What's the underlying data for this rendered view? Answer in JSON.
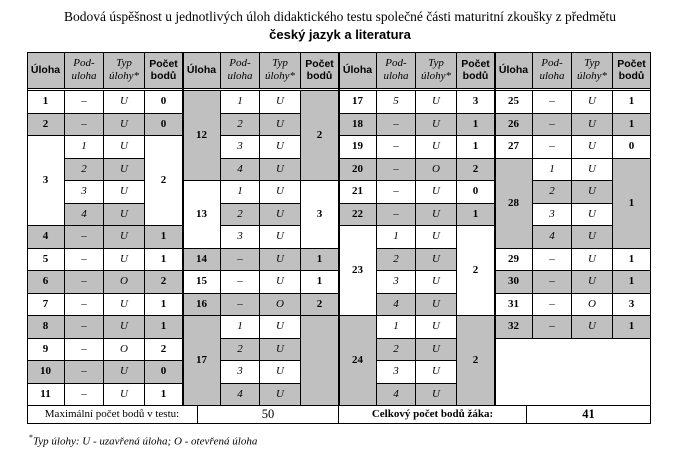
{
  "title_line1": "Bodová úspěšnost u jednotlivých úloh didaktického testu společné části maturitní zkoušky z předmětu",
  "title_line2": "český jazyk a literatura",
  "headers": {
    "task": "Úloha",
    "subtask": "Pod-\nuloha",
    "type": "Typ\núlohy*",
    "points": "Počet\nbodů"
  },
  "blocks": [
    [
      {
        "task": "1",
        "rows": [
          {
            "sub": "–",
            "type": "U"
          }
        ],
        "points": "0"
      },
      {
        "task": "2",
        "rows": [
          {
            "sub": "–",
            "type": "U"
          }
        ],
        "points": "0"
      },
      {
        "task": "3",
        "rows": [
          {
            "sub": "1",
            "type": "U"
          },
          {
            "sub": "2",
            "type": "U"
          },
          {
            "sub": "3",
            "type": "U"
          },
          {
            "sub": "4",
            "type": "U"
          }
        ],
        "points": "2"
      },
      {
        "task": "4",
        "rows": [
          {
            "sub": "–",
            "type": "U"
          }
        ],
        "points": "1"
      },
      {
        "task": "5",
        "rows": [
          {
            "sub": "–",
            "type": "U"
          }
        ],
        "points": "1"
      },
      {
        "task": "6",
        "rows": [
          {
            "sub": "–",
            "type": "O"
          }
        ],
        "points": "2"
      },
      {
        "task": "7",
        "rows": [
          {
            "sub": "–",
            "type": "U"
          }
        ],
        "points": "1"
      },
      {
        "task": "8",
        "rows": [
          {
            "sub": "–",
            "type": "U"
          }
        ],
        "points": "1"
      },
      {
        "task": "9",
        "rows": [
          {
            "sub": "–",
            "type": "O"
          }
        ],
        "points": "2"
      },
      {
        "task": "10",
        "rows": [
          {
            "sub": "–",
            "type": "U"
          }
        ],
        "points": "0"
      },
      {
        "task": "11",
        "rows": [
          {
            "sub": "–",
            "type": "U"
          }
        ],
        "points": "1"
      }
    ],
    [
      {
        "task": "12",
        "rows": [
          {
            "sub": "1",
            "type": "U"
          },
          {
            "sub": "2",
            "type": "U"
          },
          {
            "sub": "3",
            "type": "U"
          },
          {
            "sub": "4",
            "type": "U"
          }
        ],
        "points": "2"
      },
      {
        "task": "13",
        "rows": [
          {
            "sub": "1",
            "type": "U"
          },
          {
            "sub": "2",
            "type": "U"
          },
          {
            "sub": "3",
            "type": "U"
          }
        ],
        "points": "3"
      },
      {
        "task": "14",
        "rows": [
          {
            "sub": "–",
            "type": "U"
          }
        ],
        "points": "1"
      },
      {
        "task": "15",
        "rows": [
          {
            "sub": "–",
            "type": "U"
          }
        ],
        "points": "1"
      },
      {
        "task": "16",
        "rows": [
          {
            "sub": "–",
            "type": "O"
          }
        ],
        "points": "2"
      },
      {
        "task": "17",
        "rows": [
          {
            "sub": "1",
            "type": "U"
          },
          {
            "sub": "2",
            "type": "U"
          },
          {
            "sub": "3",
            "type": "U"
          },
          {
            "sub": "4",
            "type": "U"
          }
        ],
        "points": ""
      }
    ],
    [
      {
        "task": "17",
        "rows": [
          {
            "sub": "5",
            "type": "U"
          }
        ],
        "points": "3"
      },
      {
        "task": "18",
        "rows": [
          {
            "sub": "–",
            "type": "U"
          }
        ],
        "points": "1"
      },
      {
        "task": "19",
        "rows": [
          {
            "sub": "–",
            "type": "U"
          }
        ],
        "points": "1"
      },
      {
        "task": "20",
        "rows": [
          {
            "sub": "–",
            "type": "O"
          }
        ],
        "points": "2"
      },
      {
        "task": "21",
        "rows": [
          {
            "sub": "–",
            "type": "U"
          }
        ],
        "points": "0"
      },
      {
        "task": "22",
        "rows": [
          {
            "sub": "–",
            "type": "U"
          }
        ],
        "points": "1"
      },
      {
        "task": "23",
        "rows": [
          {
            "sub": "1",
            "type": "U"
          },
          {
            "sub": "2",
            "type": "U"
          },
          {
            "sub": "3",
            "type": "U"
          },
          {
            "sub": "4",
            "type": "U"
          }
        ],
        "points": "2"
      },
      {
        "task": "24",
        "rows": [
          {
            "sub": "1",
            "type": "U"
          },
          {
            "sub": "2",
            "type": "U"
          },
          {
            "sub": "3",
            "type": "U"
          },
          {
            "sub": "4",
            "type": "U"
          }
        ],
        "points": "2"
      }
    ],
    [
      {
        "task": "25",
        "rows": [
          {
            "sub": "–",
            "type": "U"
          }
        ],
        "points": "1"
      },
      {
        "task": "26",
        "rows": [
          {
            "sub": "–",
            "type": "U"
          }
        ],
        "points": "1"
      },
      {
        "task": "27",
        "rows": [
          {
            "sub": "–",
            "type": "U"
          }
        ],
        "points": "0"
      },
      {
        "task": "28",
        "rows": [
          {
            "sub": "1",
            "type": "U"
          },
          {
            "sub": "2",
            "type": "U"
          },
          {
            "sub": "3",
            "type": "U"
          },
          {
            "sub": "4",
            "type": "U"
          }
        ],
        "points": "1"
      },
      {
        "task": "29",
        "rows": [
          {
            "sub": "–",
            "type": "U"
          }
        ],
        "points": "1"
      },
      {
        "task": "30",
        "rows": [
          {
            "sub": "–",
            "type": "U"
          }
        ],
        "points": "1"
      },
      {
        "task": "31",
        "rows": [
          {
            "sub": "–",
            "type": "O"
          }
        ],
        "points": "3"
      },
      {
        "task": "32",
        "rows": [
          {
            "sub": "–",
            "type": "U"
          }
        ],
        "points": "1"
      }
    ]
  ],
  "footer": {
    "max_label": "Maximální počet bodů v testu:",
    "max_value": "50",
    "total_label": "Celkový počet bodů žáka:",
    "total_value": "41"
  },
  "note": {
    "mark": "*",
    "text": "Typ úlohy: U - uzavřená úloha; O - otevřená úloha"
  }
}
